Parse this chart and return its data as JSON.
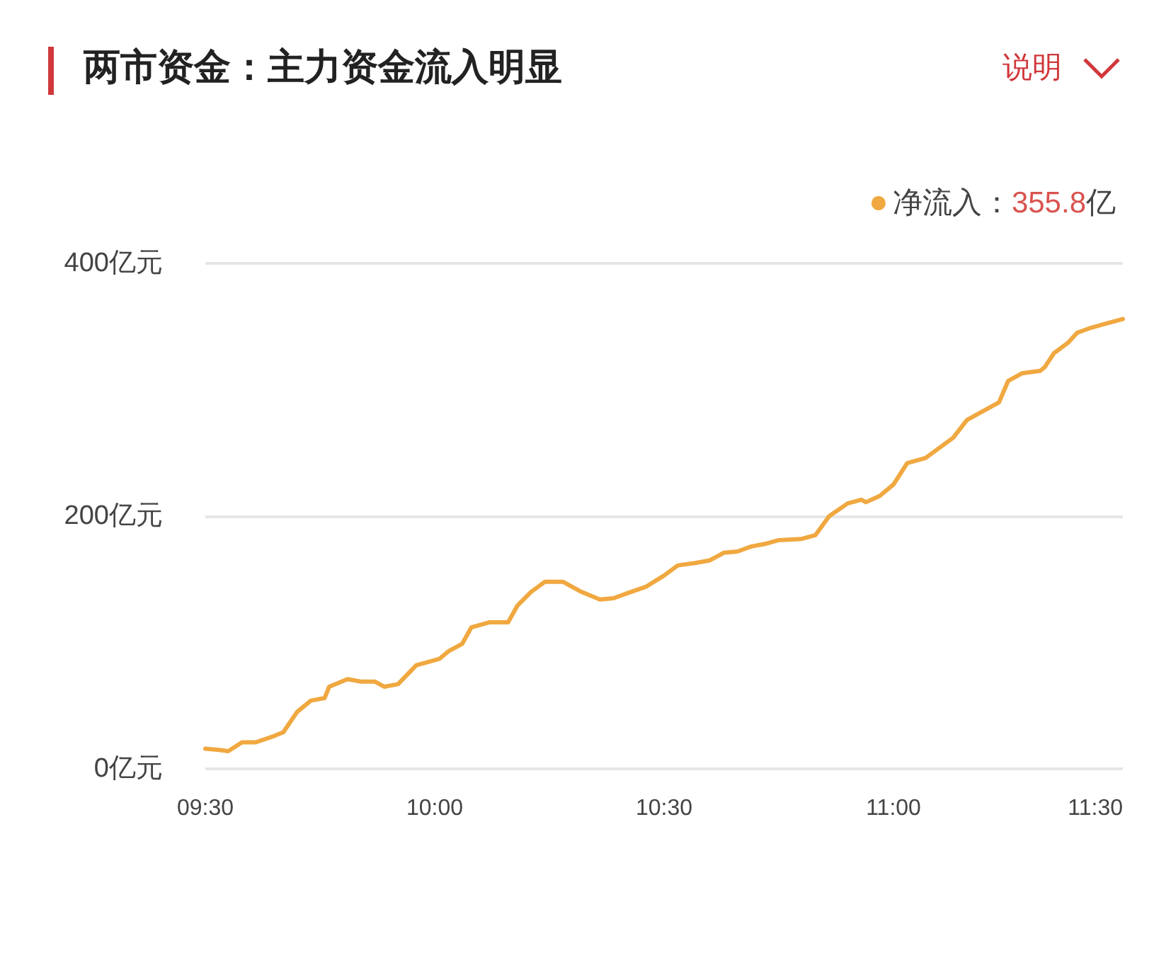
{
  "chart_data": {
    "type": "line",
    "title": "两市资金：主力资金流入明显",
    "annotations": [
      "说明",
      "355.8亿"
    ],
    "series": [
      {
        "name": "净流入：",
        "color": "#f0a840",
        "x": [
          9.5,
          9.53,
          9.55,
          9.58,
          9.61,
          9.65,
          9.67,
          9.7,
          9.73,
          9.76,
          9.77,
          9.81,
          9.84,
          9.87,
          9.89,
          9.92,
          9.96,
          9.98,
          10.01,
          10.03,
          10.06,
          10.08,
          10.12,
          10.16,
          10.18,
          10.21,
          10.24,
          10.28,
          10.32,
          10.36,
          10.39,
          10.42,
          10.46,
          10.5,
          10.53,
          10.57,
          10.6,
          10.63,
          10.66,
          10.69,
          10.72,
          10.75,
          10.8,
          10.83,
          10.86,
          10.9,
          10.93,
          10.94,
          10.97,
          11.0,
          11.03,
          11.07,
          11.1,
          11.13,
          11.16,
          11.18,
          11.23,
          11.25,
          11.28,
          11.32,
          11.33,
          11.35,
          11.38,
          11.4,
          11.43,
          11.46,
          11.5
        ],
        "values": [
          16,
          15,
          14,
          21,
          21,
          26,
          29,
          45,
          54,
          56,
          65,
          71,
          69,
          69,
          65,
          67,
          82,
          84,
          87,
          93,
          99,
          112,
          116,
          116,
          129,
          140,
          148,
          148,
          140,
          134,
          135,
          139,
          144,
          153,
          161,
          163,
          165,
          171,
          172,
          176,
          178,
          181,
          182,
          185,
          200,
          210,
          213,
          211,
          216,
          225,
          242,
          246,
          254,
          262,
          276,
          280,
          290,
          307,
          313,
          315,
          318,
          329,
          337,
          345,
          349,
          352,
          356
        ]
      }
    ],
    "xlim": [
      9.5,
      11.5
    ],
    "xticks": [
      {
        "value": 9.5,
        "label": "09:30"
      },
      {
        "value": 10,
        "label": "10:00"
      },
      {
        "value": 10.5,
        "label": "10:30"
      },
      {
        "value": 11,
        "label": "11:00"
      },
      {
        "value": 11.5,
        "label": "11:30"
      }
    ],
    "ylim": [
      0,
      400
    ],
    "yticks": [
      {
        "value": 0,
        "label": "0亿元"
      },
      {
        "value": 200,
        "label": "200亿元"
      },
      {
        "value": 400,
        "label": "400亿元"
      }
    ],
    "grid": "y",
    "legend": "top right",
    "marker": "none",
    "line_style": "solid"
  }
}
